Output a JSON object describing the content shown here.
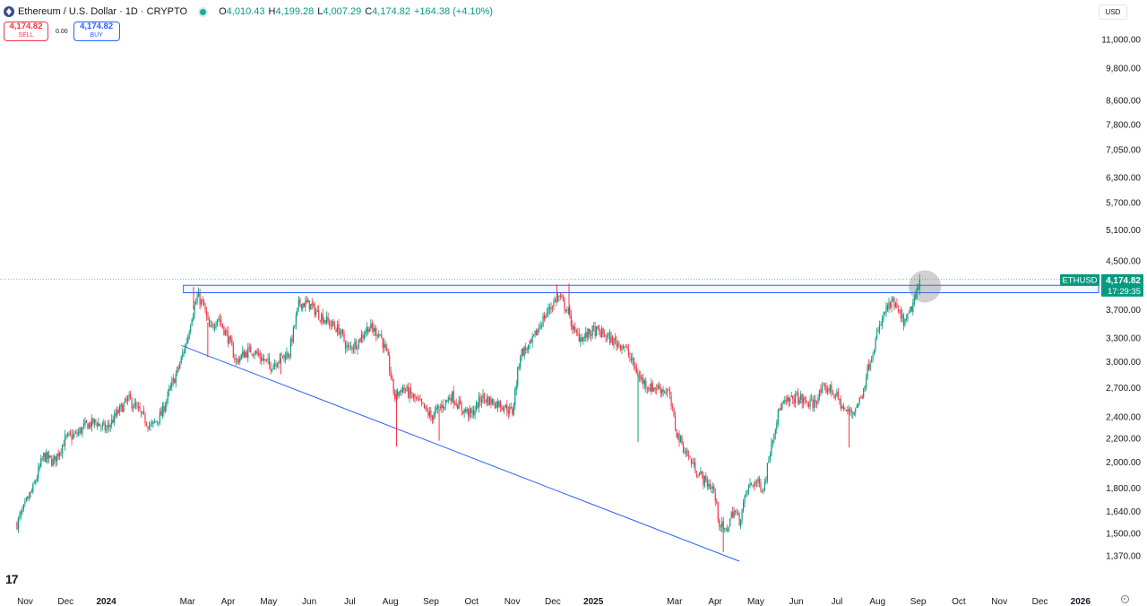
{
  "header": {
    "title": "Ethereum / U.S. Dollar · 1D · CRYPTO",
    "open_label": "O",
    "open": "4,010.43",
    "high_label": "H",
    "high": "4,199.28",
    "low_label": "L",
    "low": "4,007.29",
    "close_label": "C",
    "close": "4,174.82",
    "change": "+164.38 (+4.10%)"
  },
  "trade": {
    "sell_price": "4,174.82",
    "sell_label": "SELL",
    "spread": "0.00",
    "buy_price": "4,174.82",
    "buy_label": "BUY"
  },
  "currency": "USD",
  "price_tag": {
    "symbol": "ETHUSD",
    "price": "4,174.82",
    "countdown": "17:29:35"
  },
  "colors": {
    "up": "#089981",
    "down": "#f23645",
    "line": "#2962ff",
    "tag": "#089981"
  },
  "icons": {
    "logo": "tradingview-logo-icon",
    "settings": "gear-icon",
    "coin": "ethereum-icon"
  },
  "logo_text": "17",
  "chart_data": {
    "type": "candlestick",
    "scale": "log",
    "ylim": [
      1300,
      12000
    ],
    "y_ticks": [
      {
        "value": 11000,
        "label": "11,000.00"
      },
      {
        "value": 9800,
        "label": "9,800.00"
      },
      {
        "value": 8600,
        "label": "8,600.00"
      },
      {
        "value": 7800,
        "label": "7,800.00"
      },
      {
        "value": 7050,
        "label": "7,050.00"
      },
      {
        "value": 6300,
        "label": "6,300.00"
      },
      {
        "value": 5700,
        "label": "5,700.00"
      },
      {
        "value": 5100,
        "label": "5,100.00"
      },
      {
        "value": 4500,
        "label": "4,500.00"
      },
      {
        "value": 3700,
        "label": "3,700.00"
      },
      {
        "value": 3300,
        "label": "3,300.00"
      },
      {
        "value": 3000,
        "label": "3,000.00"
      },
      {
        "value": 2700,
        "label": "2,700.00"
      },
      {
        "value": 2400,
        "label": "2,400.00"
      },
      {
        "value": 2200,
        "label": "2,200.00"
      },
      {
        "value": 2000,
        "label": "2,000.00"
      },
      {
        "value": 1800,
        "label": "1,800.00"
      },
      {
        "value": 1640,
        "label": "1,640.00"
      },
      {
        "value": 1500,
        "label": "1,500.00"
      },
      {
        "value": 1370,
        "label": "1,370.00"
      }
    ],
    "x_ticks": [
      {
        "label": "Nov",
        "month": 0,
        "bold": false
      },
      {
        "label": "Dec",
        "month": 1,
        "bold": false
      },
      {
        "label": "2024",
        "month": 2,
        "bold": true
      },
      {
        "label": "Mar",
        "month": 4,
        "bold": false
      },
      {
        "label": "Apr",
        "month": 5,
        "bold": false
      },
      {
        "label": "May",
        "month": 6,
        "bold": false
      },
      {
        "label": "Jun",
        "month": 7,
        "bold": false
      },
      {
        "label": "Jul",
        "month": 8,
        "bold": false
      },
      {
        "label": "Aug",
        "month": 9,
        "bold": false
      },
      {
        "label": "Sep",
        "month": 10,
        "bold": false
      },
      {
        "label": "Oct",
        "month": 11,
        "bold": false
      },
      {
        "label": "Nov",
        "month": 12,
        "bold": false
      },
      {
        "label": "Dec",
        "month": 13,
        "bold": false
      },
      {
        "label": "2025",
        "month": 14,
        "bold": true
      },
      {
        "label": "Mar",
        "month": 16,
        "bold": false
      },
      {
        "label": "Apr",
        "month": 17,
        "bold": false
      },
      {
        "label": "May",
        "month": 18,
        "bold": false
      },
      {
        "label": "Jun",
        "month": 19,
        "bold": false
      },
      {
        "label": "Jul",
        "month": 20,
        "bold": false
      },
      {
        "label": "Aug",
        "month": 21,
        "bold": false
      },
      {
        "label": "Sep",
        "month": 22,
        "bold": false
      },
      {
        "label": "Oct",
        "month": 23,
        "bold": false
      },
      {
        "label": "Nov",
        "month": 24,
        "bold": false
      },
      {
        "label": "Dec",
        "month": 25,
        "bold": false
      },
      {
        "label": "2026",
        "month": 26,
        "bold": true
      }
    ],
    "price_path": [
      [
        -0.2,
        1560
      ],
      [
        0.2,
        1800
      ],
      [
        0.45,
        2050
      ],
      [
        0.7,
        2000
      ],
      [
        1.0,
        2200
      ],
      [
        1.25,
        2230
      ],
      [
        1.5,
        2320
      ],
      [
        1.75,
        2350
      ],
      [
        2.0,
        2280
      ],
      [
        2.3,
        2450
      ],
      [
        2.55,
        2580
      ],
      [
        2.8,
        2450
      ],
      [
        3.1,
        2300
      ],
      [
        3.35,
        2420
      ],
      [
        3.55,
        2650
      ],
      [
        3.8,
        2950
      ],
      [
        4.0,
        3300
      ],
      [
        4.1,
        3600
      ],
      [
        4.25,
        3900
      ],
      [
        4.4,
        3750
      ],
      [
        4.55,
        3400
      ],
      [
        4.75,
        3600
      ],
      [
        5.0,
        3300
      ],
      [
        5.2,
        3000
      ],
      [
        5.4,
        3100
      ],
      [
        5.6,
        3150
      ],
      [
        5.8,
        3050
      ],
      [
        6.05,
        2950
      ],
      [
        6.3,
        3050
      ],
      [
        6.5,
        3100
      ],
      [
        6.75,
        3800
      ],
      [
        7.0,
        3780
      ],
      [
        7.2,
        3650
      ],
      [
        7.5,
        3500
      ],
      [
        7.75,
        3400
      ],
      [
        7.95,
        3150
      ],
      [
        8.2,
        3250
      ],
      [
        8.45,
        3450
      ],
      [
        8.75,
        3350
      ],
      [
        8.95,
        3000
      ],
      [
        9.1,
        2600
      ],
      [
        9.3,
        2700
      ],
      [
        9.5,
        2620
      ],
      [
        9.75,
        2520
      ],
      [
        10.0,
        2400
      ],
      [
        10.25,
        2500
      ],
      [
        10.5,
        2620
      ],
      [
        10.75,
        2480
      ],
      [
        11.0,
        2420
      ],
      [
        11.25,
        2600
      ],
      [
        11.5,
        2550
      ],
      [
        11.75,
        2520
      ],
      [
        12.0,
        2440
      ],
      [
        12.2,
        3100
      ],
      [
        12.45,
        3200
      ],
      [
        12.7,
        3500
      ],
      [
        12.95,
        3750
      ],
      [
        13.15,
        3900
      ],
      [
        13.35,
        3700
      ],
      [
        13.55,
        3350
      ],
      [
        13.75,
        3300
      ],
      [
        14.0,
        3400
      ],
      [
        14.25,
        3350
      ],
      [
        14.5,
        3250
      ],
      [
        14.75,
        3200
      ],
      [
        14.95,
        3000
      ],
      [
        15.15,
        2800
      ],
      [
        15.4,
        2700
      ],
      [
        15.6,
        2700
      ],
      [
        15.85,
        2650
      ],
      [
        16.05,
        2250
      ],
      [
        16.25,
        2100
      ],
      [
        16.5,
        1950
      ],
      [
        16.75,
        1850
      ],
      [
        16.95,
        1800
      ],
      [
        17.1,
        1570
      ],
      [
        17.25,
        1500
      ],
      [
        17.45,
        1650
      ],
      [
        17.6,
        1580
      ],
      [
        17.8,
        1800
      ],
      [
        18.0,
        1850
      ],
      [
        18.2,
        1800
      ],
      [
        18.4,
        2200
      ],
      [
        18.6,
        2500
      ],
      [
        18.8,
        2550
      ],
      [
        19.0,
        2600
      ],
      [
        19.2,
        2550
      ],
      [
        19.4,
        2520
      ],
      [
        19.6,
        2650
      ],
      [
        19.8,
        2700
      ],
      [
        20.0,
        2600
      ],
      [
        20.2,
        2450
      ],
      [
        20.4,
        2450
      ],
      [
        20.6,
        2600
      ],
      [
        20.8,
        3000
      ],
      [
        21.0,
        3350
      ],
      [
        21.2,
        3700
      ],
      [
        21.4,
        3800
      ],
      [
        21.55,
        3600
      ],
      [
        21.7,
        3500
      ],
      [
        21.85,
        3750
      ],
      [
        22.0,
        4010
      ],
      [
        22.05,
        4174.82
      ]
    ],
    "spikes": [
      {
        "month": 4.15,
        "high": 4050,
        "low": null
      },
      {
        "month": 4.5,
        "high": null,
        "low": 3050
      },
      {
        "month": 6.3,
        "high": null,
        "low": 2850
      },
      {
        "month": 9.15,
        "high": null,
        "low": 2130
      },
      {
        "month": 10.2,
        "high": null,
        "low": 2180
      },
      {
        "month": 13.1,
        "high": 4100,
        "low": null
      },
      {
        "month": 13.4,
        "high": 4110,
        "low": null
      },
      {
        "month": 15.1,
        "high": null,
        "low": 2170
      },
      {
        "month": 17.2,
        "high": null,
        "low": 1390
      },
      {
        "month": 20.3,
        "high": null,
        "low": 2120
      }
    ],
    "resistance_zone": {
      "x_start": 3.9,
      "x_end": 26.8,
      "high": 4080,
      "low": 3960
    },
    "trendline": {
      "x1": 3.85,
      "y1": 3200,
      "x2": 17.6,
      "y2": 1340
    },
    "highlight": {
      "month": 22.1,
      "price": 4120
    },
    "last_price": 4174.82
  }
}
